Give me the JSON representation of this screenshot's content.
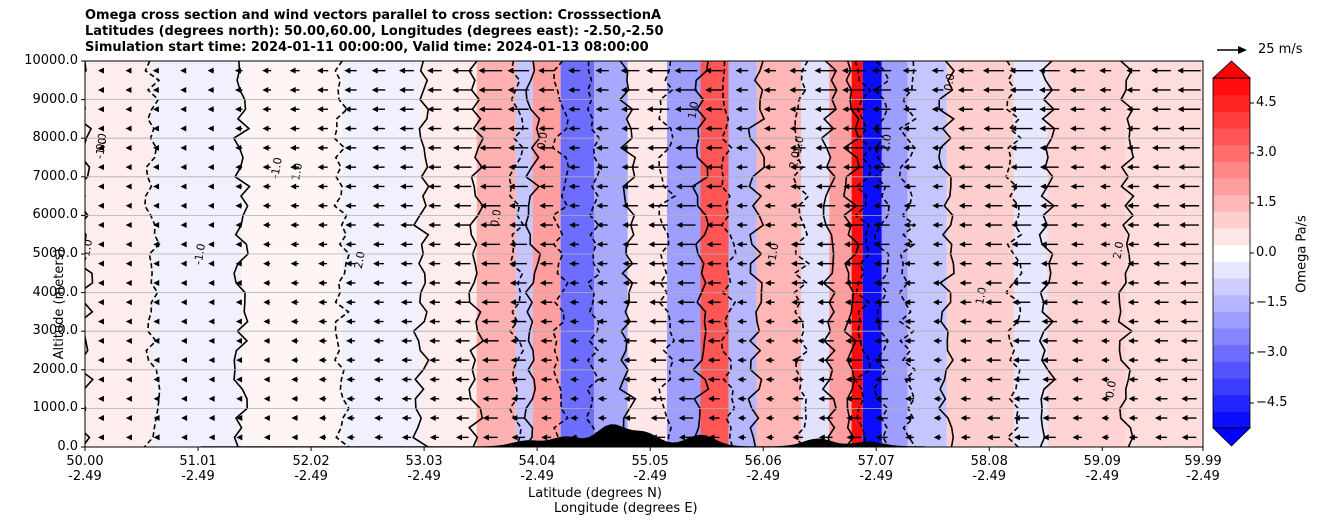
{
  "chart_data": {
    "type": "heatmap",
    "title_lines": [
      "Omega cross section and wind vectors parallel to cross section: CrosssectionA",
      "Latitudes (degrees north): 50.00,60.00, Longitudes (degrees east): -2.50,-2.50",
      "Simulation start time: 2024-01-11 00:00:00, Valid time: 2024-01-13 08:00:00"
    ],
    "ylabel": "Altitude (meters)",
    "xlabel_lat": "Latitude (degrees N)",
    "xlabel_lon": "Longitude (degrees E)",
    "ylim": [
      0,
      10000
    ],
    "xlim": [
      50.0,
      59.99
    ],
    "y_ticks": [
      {
        "value": 0,
        "label": "0.0"
      },
      {
        "value": 1000,
        "label": "1000.0"
      },
      {
        "value": 2000,
        "label": "2000.0"
      },
      {
        "value": 3000,
        "label": "3000.0"
      },
      {
        "value": 4000,
        "label": "4000.0"
      },
      {
        "value": 5000,
        "label": "5000.0"
      },
      {
        "value": 6000,
        "label": "6000.0"
      },
      {
        "value": 7000,
        "label": "7000.0"
      },
      {
        "value": 8000,
        "label": "8000.0"
      },
      {
        "value": 9000,
        "label": "9000.0"
      },
      {
        "value": 10000,
        "label": "10000.0"
      }
    ],
    "x_ticks": [
      {
        "value": 50.0,
        "lat": "50.00",
        "lon": "-2.49"
      },
      {
        "value": 51.01,
        "lat": "51.01",
        "lon": "-2.49"
      },
      {
        "value": 52.02,
        "lat": "52.02",
        "lon": "-2.49"
      },
      {
        "value": 53.03,
        "lat": "53.03",
        "lon": "-2.49"
      },
      {
        "value": 54.04,
        "lat": "54.04",
        "lon": "-2.49"
      },
      {
        "value": 55.05,
        "lat": "55.05",
        "lon": "-2.49"
      },
      {
        "value": 56.06,
        "lat": "56.06",
        "lon": "-2.49"
      },
      {
        "value": 57.07,
        "lat": "57.07",
        "lon": "-2.49"
      },
      {
        "value": 58.08,
        "lat": "58.08",
        "lon": "-2.49"
      },
      {
        "value": 59.09,
        "lat": "59.09",
        "lon": "-2.49"
      },
      {
        "value": 59.99,
        "lat": "59.99",
        "lon": "-2.49"
      }
    ],
    "grid": "horizontal",
    "colorbar": {
      "label": "Omega Pa/s",
      "range": [
        -5.25,
        5.25
      ],
      "extend": "both",
      "ticks": [
        {
          "value": 4.5,
          "label": "4.5"
        },
        {
          "value": 3.0,
          "label": "3.0"
        },
        {
          "value": 1.5,
          "label": "1.5"
        },
        {
          "value": 0.0,
          "label": "0.0"
        },
        {
          "value": -1.5,
          "label": "−1.5"
        },
        {
          "value": -3.0,
          "label": "−3.0"
        },
        {
          "value": -4.5,
          "label": "−4.5"
        }
      ]
    },
    "reference_vector": {
      "label": "25 m/s",
      "speed": 25
    },
    "omega_bands": [
      {
        "lat_start": 50.0,
        "lat_end": 50.6,
        "omega": 0.4
      },
      {
        "lat_start": 50.6,
        "lat_end": 51.4,
        "omega": -0.3
      },
      {
        "lat_start": 51.4,
        "lat_end": 52.3,
        "omega": 0.2
      },
      {
        "lat_start": 52.3,
        "lat_end": 53.0,
        "omega": -0.3
      },
      {
        "lat_start": 53.0,
        "lat_end": 53.5,
        "omega": 0.4
      },
      {
        "lat_start": 53.5,
        "lat_end": 53.85,
        "omega": 1.6
      },
      {
        "lat_start": 53.85,
        "lat_end": 54.0,
        "omega": -1.2
      },
      {
        "lat_start": 54.0,
        "lat_end": 54.25,
        "omega": 2.0
      },
      {
        "lat_start": 54.25,
        "lat_end": 54.55,
        "omega": -3.0
      },
      {
        "lat_start": 54.55,
        "lat_end": 54.85,
        "omega": -1.8
      },
      {
        "lat_start": 54.85,
        "lat_end": 55.2,
        "omega": 0.5
      },
      {
        "lat_start": 55.2,
        "lat_end": 55.5,
        "omega": -2.0
      },
      {
        "lat_start": 55.5,
        "lat_end": 55.75,
        "omega": 3.5
      },
      {
        "lat_start": 55.75,
        "lat_end": 56.0,
        "omega": -1.5
      },
      {
        "lat_start": 56.0,
        "lat_end": 56.4,
        "omega": 1.5
      },
      {
        "lat_start": 56.4,
        "lat_end": 56.65,
        "omega": -0.6
      },
      {
        "lat_start": 56.65,
        "lat_end": 56.85,
        "omega": 2.0
      },
      {
        "lat_start": 56.85,
        "lat_end": 56.95,
        "omega": 5.0
      },
      {
        "lat_start": 56.95,
        "lat_end": 57.12,
        "omega": -5.0
      },
      {
        "lat_start": 57.12,
        "lat_end": 57.35,
        "omega": -2.0
      },
      {
        "lat_start": 57.35,
        "lat_end": 57.7,
        "omega": -1.2
      },
      {
        "lat_start": 57.7,
        "lat_end": 58.3,
        "omega": 1.0
      },
      {
        "lat_start": 58.3,
        "lat_end": 58.6,
        "omega": -0.5
      },
      {
        "lat_start": 58.6,
        "lat_end": 59.3,
        "omega": 0.9
      },
      {
        "lat_start": 59.3,
        "lat_end": 59.99,
        "omega": 0.7
      }
    ],
    "contour_levels_shown": [
      "-1.0",
      "0.0",
      "1.0",
      "2.0"
    ],
    "wind_vectors": {
      "columns": 40,
      "rows": 20,
      "direction": "towards_south",
      "max_speed": 25
    },
    "terrain_peaks": [
      {
        "lat": 53.95,
        "altitude": 150
      },
      {
        "lat": 54.3,
        "altitude": 250
      },
      {
        "lat": 54.7,
        "altitude": 550
      },
      {
        "lat": 55.0,
        "altitude": 350
      },
      {
        "lat": 55.5,
        "altitude": 300
      },
      {
        "lat": 56.55,
        "altitude": 200
      },
      {
        "lat": 57.0,
        "altitude": 120
      }
    ]
  }
}
